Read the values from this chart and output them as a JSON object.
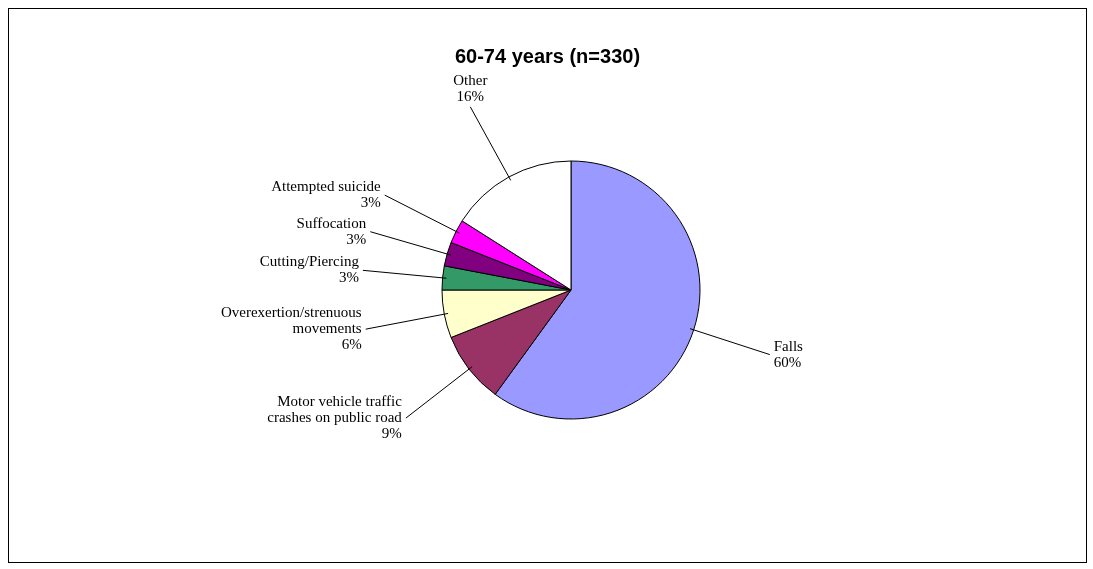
{
  "chart_data": {
    "type": "pie",
    "title": "60-74 years (n=330)",
    "categories": [
      "Falls",
      "Motor vehicle traffic crashes on public road",
      "Overexertion/strenuous movements",
      "Cutting/Piercing",
      "Suffocation",
      "Attempted suicide",
      "Other"
    ],
    "values": [
      60,
      9,
      6,
      3,
      3,
      3,
      16
    ],
    "value_labels": [
      "60%",
      "9%",
      "6%",
      "3%",
      "3%",
      "3%",
      "16%"
    ],
    "colors": [
      "#9999ff",
      "#993366",
      "#ffffcc",
      "#339966",
      "#800080",
      "#ff00ff",
      "#ffffff"
    ]
  }
}
